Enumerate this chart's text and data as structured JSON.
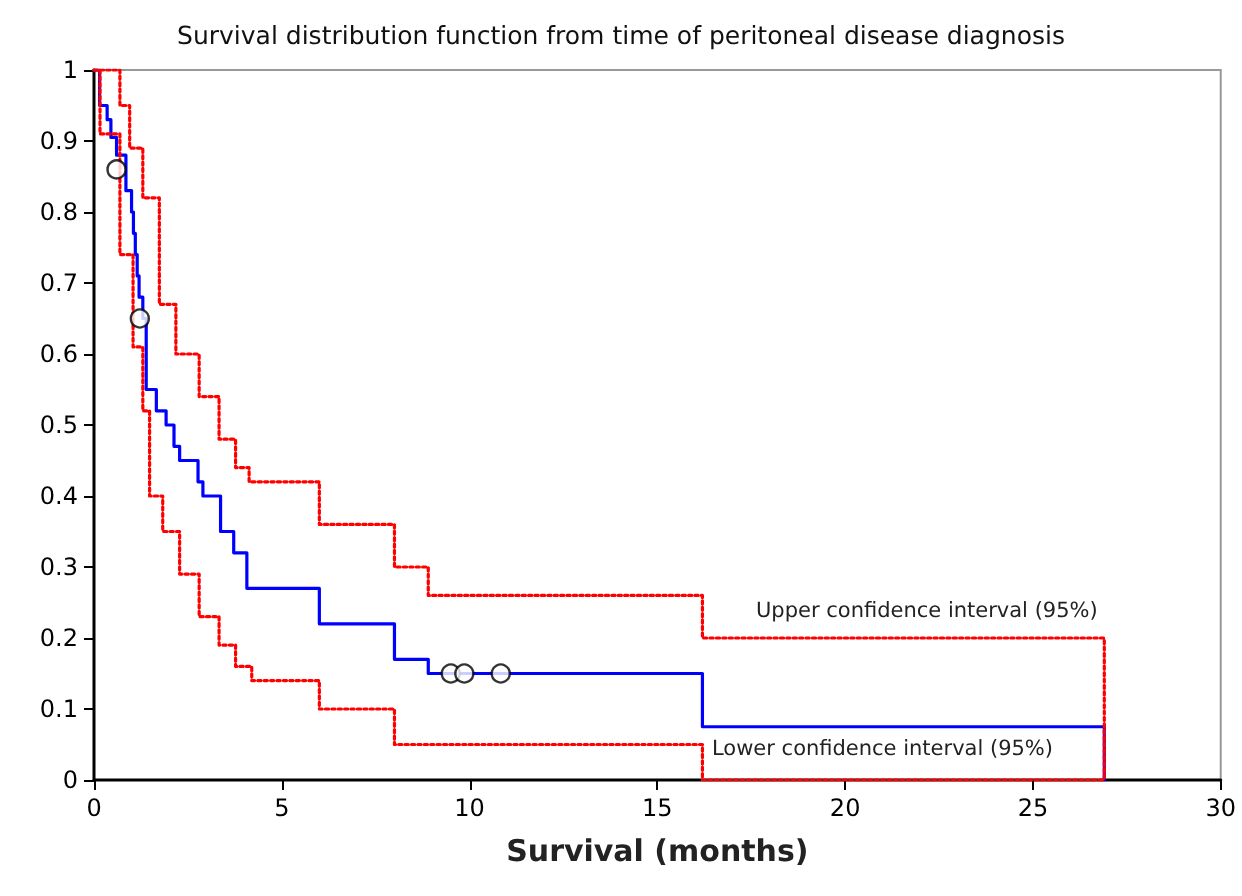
{
  "chart_data": {
    "type": "step",
    "title": "Survival distribution function from time of peritoneal disease diagnosis",
    "xlabel": "Survival (months)",
    "xlim": [
      0,
      30
    ],
    "xticks": [
      0,
      5,
      10,
      15,
      20,
      25,
      30
    ],
    "ylim": [
      0,
      1
    ],
    "yticks": [
      0,
      0.1,
      0.2,
      0.3,
      0.4,
      0.5,
      0.6,
      0.7,
      0.8,
      0.9,
      1
    ],
    "grid": false,
    "marker": "none",
    "series": [
      {
        "color": "#0000ff",
        "line_style": "solid",
        "x": [
          0,
          0.15,
          0.35,
          0.45,
          0.6,
          0.85,
          1.0,
          1.05,
          1.1,
          1.15,
          1.2,
          1.3,
          1.39,
          1.66,
          1.92,
          2.13,
          2.28,
          2.77,
          2.9,
          3.37,
          3.72,
          4.07,
          6.0,
          8.0,
          8.9,
          16.2,
          26.9
        ],
        "values": [
          1,
          0.95,
          0.93,
          0.905,
          0.88,
          0.83,
          0.8,
          0.77,
          0.74,
          0.71,
          0.68,
          0.65,
          0.55,
          0.52,
          0.5,
          0.47,
          0.45,
          0.42,
          0.4,
          0.35,
          0.32,
          0.27,
          0.22,
          0.17,
          0.15,
          0.075,
          0
        ]
      },
      {
        "color": "#ff0000",
        "line_style": "dotted",
        "x": [
          0,
          0.69,
          0.95,
          1.3,
          1.74,
          2.18,
          2.8,
          3.33,
          3.77,
          4.13,
          6.0,
          8.0,
          8.9,
          16.2,
          26.9
        ],
        "values": [
          1,
          0.95,
          0.89,
          0.82,
          0.67,
          0.6,
          0.54,
          0.48,
          0.44,
          0.42,
          0.36,
          0.3,
          0.26,
          0.2,
          0
        ]
      },
      {
        "color": "#ff0000",
        "line_style": "dotted",
        "x": [
          0,
          0.16,
          0.69,
          1.04,
          1.3,
          1.48,
          1.83,
          2.28,
          2.8,
          3.33,
          3.77,
          4.2,
          6.0,
          8.0,
          16.2,
          26.9
        ],
        "values": [
          1,
          0.91,
          0.74,
          0.61,
          0.52,
          0.4,
          0.35,
          0.29,
          0.23,
          0.19,
          0.16,
          0.14,
          0.1,
          0.05,
          0,
          0
        ]
      },
      {
        "type": "scatter",
        "color": "#000000",
        "marker": "circle",
        "x": [
          0.6,
          1.22,
          9.5,
          9.86,
          10.83
        ],
        "values": [
          0.86,
          0.65,
          0.15,
          0.15,
          0.15
        ]
      }
    ],
    "annotations": [
      "Upper confidence interval (95%)",
      "Lower confidence interval (95%)"
    ]
  }
}
